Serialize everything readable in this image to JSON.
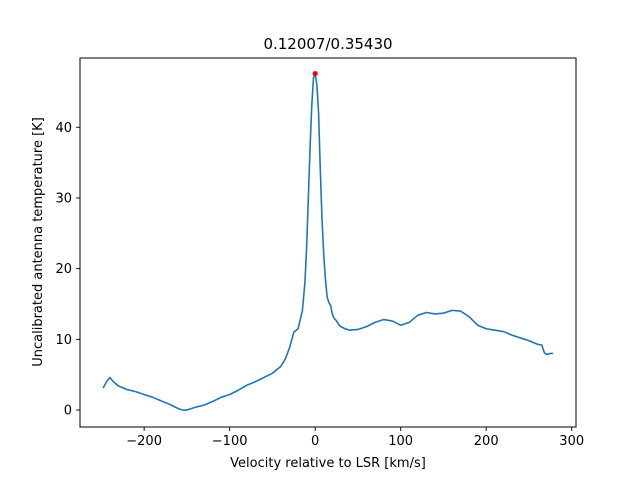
{
  "chart_data": {
    "type": "line",
    "title": "0.12007/0.35430",
    "xlabel": "Velocity relative to LSR [km/s]",
    "ylabel": "Uncalibrated antenna temperature [K]",
    "xlim": [
      -275,
      305
    ],
    "ylim": [
      -2.4,
      49.8
    ],
    "xticks": [
      -200,
      -100,
      0,
      100,
      200,
      300
    ],
    "xtick_labels": [
      "−200",
      "−100",
      "0",
      "100",
      "200",
      "300"
    ],
    "yticks": [
      0,
      10,
      20,
      30,
      40
    ],
    "ytick_labels": [
      "0",
      "10",
      "20",
      "30",
      "40"
    ],
    "grid": false,
    "series": [
      {
        "color": "#1f77b4",
        "x": [
          -248,
          -244,
          -240,
          -236,
          -230,
          -220,
          -210,
          -200,
          -190,
          -180,
          -170,
          -160,
          -155,
          -150,
          -145,
          -140,
          -130,
          -120,
          -110,
          -100,
          -90,
          -80,
          -70,
          -60,
          -50,
          -40,
          -35,
          -30,
          -25,
          -20,
          -15,
          -12,
          -10,
          -8,
          -6,
          -4,
          -2,
          0,
          2,
          4,
          6,
          8,
          10,
          12,
          14,
          16,
          18,
          20,
          22,
          25,
          28,
          30,
          35,
          40,
          50,
          60,
          70,
          80,
          90,
          100,
          110,
          120,
          130,
          140,
          150,
          160,
          170,
          180,
          190,
          200,
          210,
          220,
          230,
          240,
          250,
          260,
          265,
          268,
          270,
          272,
          275,
          278
        ],
        "y": [
          3.1,
          4.0,
          4.6,
          4.0,
          3.4,
          2.9,
          2.6,
          2.2,
          1.8,
          1.3,
          0.8,
          0.2,
          0.0,
          0.0,
          0.2,
          0.4,
          0.7,
          1.2,
          1.8,
          2.2,
          2.8,
          3.5,
          4.0,
          4.6,
          5.2,
          6.2,
          7.2,
          8.8,
          11.0,
          11.5,
          14.0,
          18.0,
          23.0,
          30.0,
          37.0,
          43.0,
          47.0,
          47.6,
          46.0,
          42.0,
          34.0,
          27.0,
          22.0,
          18.5,
          16.0,
          15.2,
          14.8,
          13.6,
          13.0,
          12.6,
          12.0,
          11.8,
          11.5,
          11.3,
          11.4,
          11.8,
          12.4,
          12.8,
          12.6,
          12.0,
          12.4,
          13.4,
          13.8,
          13.6,
          13.7,
          14.1,
          14.0,
          13.2,
          12.0,
          11.5,
          11.3,
          11.1,
          10.6,
          10.2,
          9.8,
          9.3,
          9.2,
          8.1,
          7.9,
          7.9,
          8.0,
          8.0
        ]
      }
    ],
    "peak_marker": {
      "x": 0,
      "y": 47.6,
      "color": "#ff0000"
    }
  }
}
